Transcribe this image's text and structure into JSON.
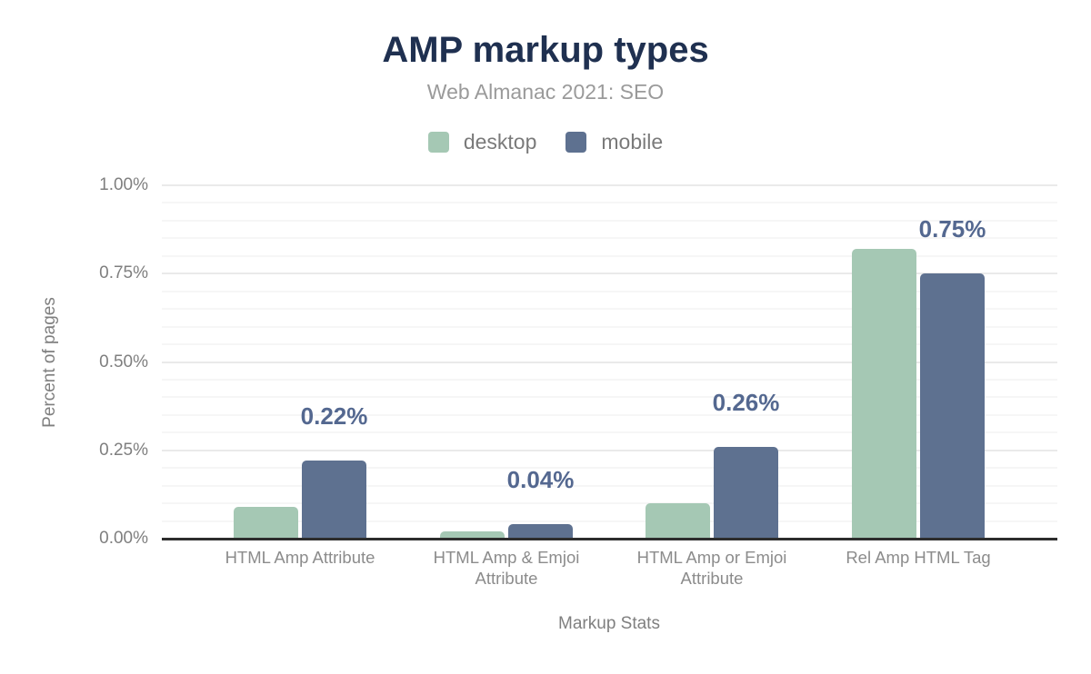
{
  "chart_data": {
    "type": "bar",
    "title": "AMP markup types",
    "subtitle": "Web Almanac 2021: SEO",
    "xlabel": "Markup Stats",
    "ylabel": "Percent of pages",
    "categories": [
      "HTML Amp Attribute",
      "HTML Amp & Emjoi Attribute",
      "HTML Amp or Emjoi Attribute",
      "Rel Amp HTML Tag"
    ],
    "series": [
      {
        "name": "desktop",
        "color": "#a5c8b4",
        "values": [
          0.09,
          0.02,
          0.1,
          0.82
        ]
      },
      {
        "name": "mobile",
        "color": "#5e7190",
        "values": [
          0.22,
          0.04,
          0.26,
          0.75
        ]
      }
    ],
    "data_labels": {
      "on_series": "mobile",
      "values": [
        "0.22%",
        "0.04%",
        "0.26%",
        "0.75%"
      ],
      "color": "#546890"
    },
    "y_axis": {
      "ticks": [
        "0.00%",
        "0.25%",
        "0.50%",
        "0.75%",
        "1.00%"
      ],
      "tick_values": [
        0,
        0.25,
        0.5,
        0.75,
        1.0
      ],
      "minor_step": 0.05,
      "ylim": [
        0,
        1.0
      ]
    },
    "legend_position": "top",
    "grid": true,
    "colors": {
      "title": "#1f3050",
      "subtitle": "#9a9a9a",
      "axis_text": "#7f7f7f",
      "category_text": "#8c8c8c",
      "major_grid": "#eaeaea",
      "minor_grid": "#f6f6f6",
      "axis_line": "#2d2d2d",
      "background": "#ffffff"
    }
  }
}
